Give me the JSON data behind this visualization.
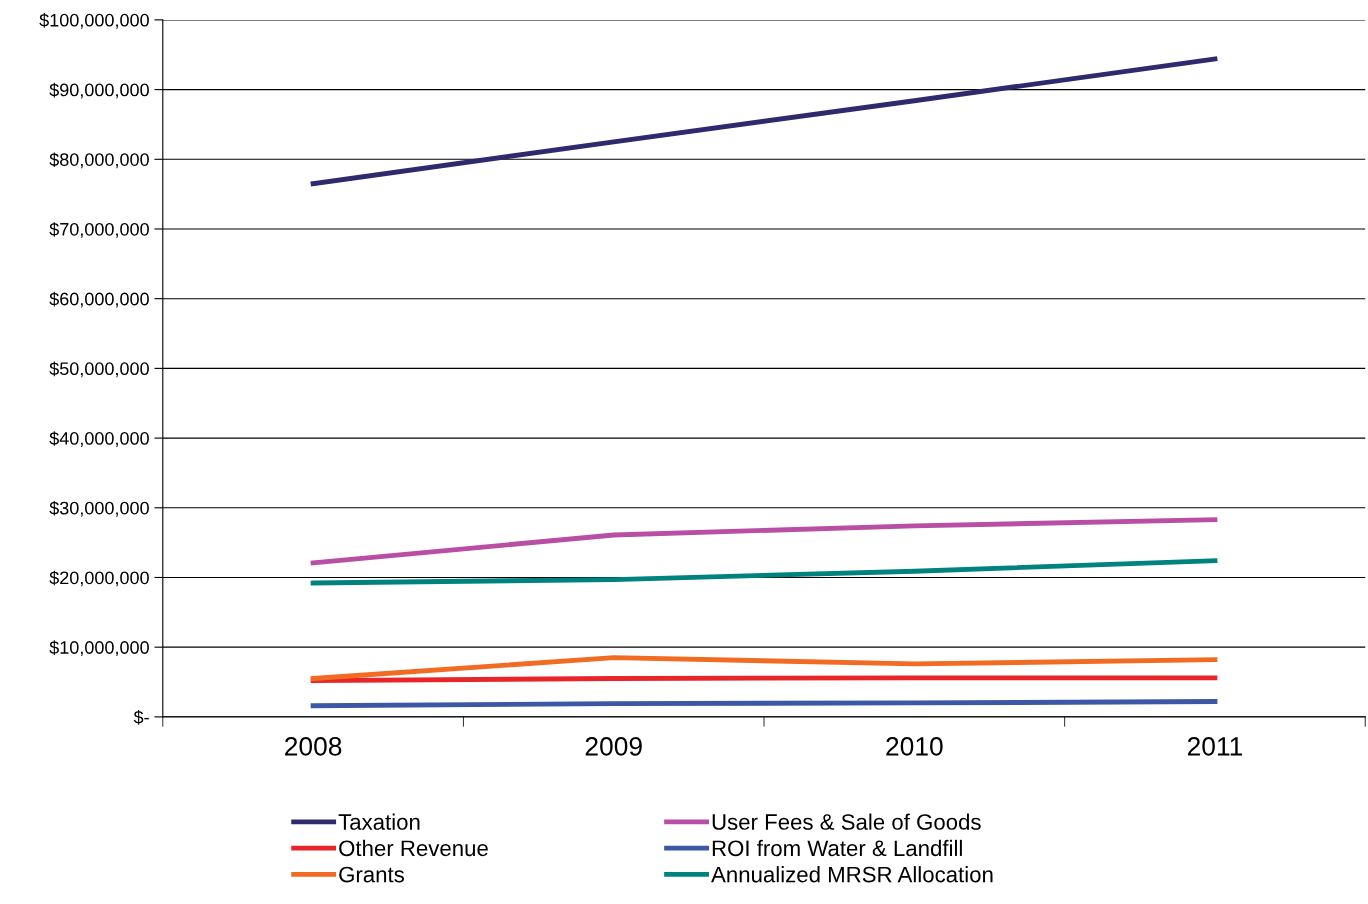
{
  "chart_data": {
    "type": "line",
    "categories": [
      "2008",
      "2009",
      "2010",
      "2011"
    ],
    "series": [
      {
        "name": "Taxation",
        "color": "#2e2a6e",
        "values": [
          76500000,
          82500000,
          88400000,
          94400000
        ]
      },
      {
        "name": "Other Revenue",
        "color": "#e8262a",
        "values": [
          5200000,
          5500000,
          5600000,
          5600000
        ]
      },
      {
        "name": "Grants",
        "color": "#f26b22",
        "values": [
          5500000,
          8500000,
          7600000,
          8200000
        ]
      },
      {
        "name": "User Fees & Sale of Goods",
        "color": "#b94fa5",
        "values": [
          22100000,
          26100000,
          27400000,
          28300000
        ]
      },
      {
        "name": "ROI from Water & Landfill",
        "color": "#3b57a6",
        "values": [
          1600000,
          1900000,
          2000000,
          2200000
        ]
      },
      {
        "name": "Annualized MRSR Allocation",
        "color": "#00827f",
        "values": [
          19200000,
          19700000,
          20900000,
          22400000
        ]
      }
    ],
    "ylim": [
      0,
      100000000
    ],
    "yticks": [
      {
        "value": 0,
        "label": "$-"
      },
      {
        "value": 10000000,
        "label": "$10,000,000"
      },
      {
        "value": 20000000,
        "label": "$20,000,000"
      },
      {
        "value": 30000000,
        "label": "$30,000,000"
      },
      {
        "value": 40000000,
        "label": "$40,000,000"
      },
      {
        "value": 50000000,
        "label": "$50,000,000"
      },
      {
        "value": 60000000,
        "label": "$60,000,000"
      },
      {
        "value": 70000000,
        "label": "$70,000,000"
      },
      {
        "value": 80000000,
        "label": "$80,000,000"
      },
      {
        "value": 90000000,
        "label": "$90,000,000"
      },
      {
        "value": 100000000,
        "label": "$100,000,000"
      }
    ],
    "grid": "y",
    "legend": "bottom",
    "marker": "none",
    "line_style": "solid"
  }
}
